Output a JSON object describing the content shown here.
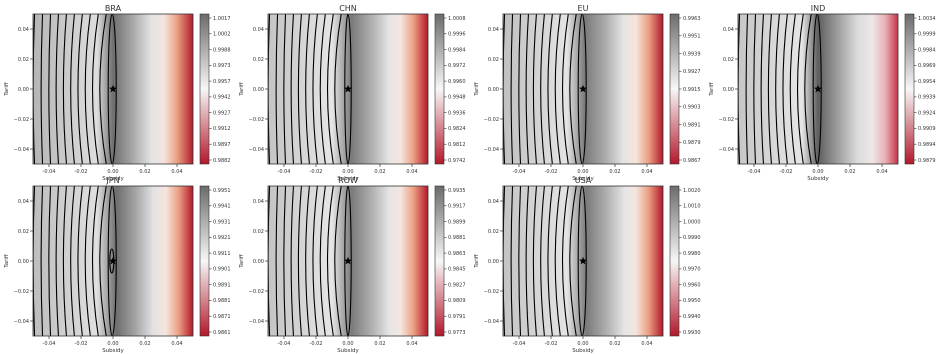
{
  "figure": {
    "xlabel": "Subsidy",
    "ylabel": "Tariff",
    "xticks": [
      -0.04,
      -0.02,
      0.0,
      0.02,
      0.04
    ],
    "yticks": [
      0.04,
      0.02,
      0.0,
      -0.02,
      -0.04
    ],
    "xtick_labels": [
      "-0.04",
      "-0.02",
      "0.00",
      "0.02",
      "0.04"
    ],
    "ytick_labels": [
      "0.04",
      "0.02",
      "0.00",
      "−0.02",
      "−0.04"
    ],
    "marker": "star",
    "marker_color": "#000000",
    "colormap_low": "#b2182b",
    "colormap_mid": "#f7f7f7",
    "colormap_high": "#6b6b6b",
    "contour_color": "#000000"
  },
  "chart_data": [
    {
      "type": "heatmap",
      "title": "BRA",
      "xlabel": "Subsidy",
      "ylabel": "Tariff",
      "xlim": [
        -0.05,
        0.05
      ],
      "ylim": [
        -0.05,
        0.05
      ],
      "optimum": {
        "x": 0.0,
        "y": 0.0
      },
      "colorbar_ticks": [
        "1.0017",
        "1.0002",
        "0.9988",
        "0.9973",
        "0.9957",
        "0.9942",
        "0.9927",
        "0.9912",
        "0.9897",
        "0.9882"
      ],
      "vertical_contours_x": [
        -0.049,
        -0.044,
        -0.039,
        -0.034,
        -0.029,
        -0.024,
        -0.019,
        -0.014,
        -0.009,
        -0.004
      ],
      "ellipse_contours": [
        {
          "left": -0.003,
          "right": 0.002,
          "half_height": 0.05
        }
      ],
      "gradient_stops": [
        [
          -0.05,
          "#b5b5b5"
        ],
        [
          -0.03,
          "#cacaca"
        ],
        [
          -0.01,
          "#dedede"
        ],
        [
          0.0,
          "#6f6f6f"
        ],
        [
          0.012,
          "#a6a6a6"
        ],
        [
          0.024,
          "#e4e4e4"
        ],
        [
          0.032,
          "#f4e4dc"
        ],
        [
          0.04,
          "#eaa184"
        ],
        [
          0.05,
          "#b01d2b"
        ]
      ]
    },
    {
      "type": "heatmap",
      "title": "CHN",
      "xlabel": "Subsidy",
      "ylabel": "Tariff",
      "xlim": [
        -0.05,
        0.05
      ],
      "ylim": [
        -0.05,
        0.05
      ],
      "optimum": {
        "x": 0.0,
        "y": 0.0
      },
      "colorbar_ticks": [
        "1.0008",
        "0.9996",
        "0.9984",
        "0.9972",
        "0.9960",
        "0.9948",
        "0.9936",
        "0.9824",
        "0.9812",
        "0.9742"
      ],
      "vertical_contours_x": [
        -0.049,
        -0.044,
        -0.039,
        -0.034,
        -0.029,
        -0.024,
        -0.019,
        -0.014,
        -0.009,
        -0.004
      ],
      "ellipse_contours": [
        {
          "left": -0.002,
          "right": 0.002,
          "half_height": 0.05
        }
      ],
      "gradient_stops": [
        [
          -0.05,
          "#c4c4c4"
        ],
        [
          -0.03,
          "#d4d4d4"
        ],
        [
          -0.01,
          "#e6e6e6"
        ],
        [
          0.002,
          "#7a7a7a"
        ],
        [
          0.015,
          "#b0b0b0"
        ],
        [
          0.026,
          "#e6e6e6"
        ],
        [
          0.033,
          "#f5e6de"
        ],
        [
          0.041,
          "#eb9f82"
        ],
        [
          0.05,
          "#b2182b"
        ]
      ]
    },
    {
      "type": "heatmap",
      "title": "EU",
      "xlabel": "Subsidy",
      "ylabel": "Tariff",
      "xlim": [
        -0.05,
        0.05
      ],
      "ylim": [
        -0.05,
        0.05
      ],
      "optimum": {
        "x": 0.0,
        "y": 0.0
      },
      "colorbar_ticks": [
        "0.9963",
        "0.9951",
        "0.9939",
        "0.9927",
        "0.9915",
        "0.9903",
        "0.9891",
        "0.9879",
        "0.9867"
      ],
      "vertical_contours_x": [
        -0.049,
        -0.044,
        -0.039,
        -0.034,
        -0.029,
        -0.024,
        -0.019,
        -0.014,
        -0.009,
        -0.004
      ],
      "ellipse_contours": [
        {
          "left": -0.003,
          "right": 0.002,
          "half_height": 0.05
        }
      ],
      "gradient_stops": [
        [
          -0.05,
          "#c0c0c0"
        ],
        [
          -0.03,
          "#d2d2d2"
        ],
        [
          -0.01,
          "#e4e4e4"
        ],
        [
          0.001,
          "#7a7a7a"
        ],
        [
          0.014,
          "#ababab"
        ],
        [
          0.025,
          "#e4e4e4"
        ],
        [
          0.033,
          "#f5e5dd"
        ],
        [
          0.041,
          "#eaa083"
        ],
        [
          0.05,
          "#b2182b"
        ]
      ]
    },
    {
      "type": "heatmap",
      "title": "IND",
      "xlabel": "Subsidy",
      "ylabel": "Tariff",
      "xlim": [
        -0.05,
        0.05
      ],
      "ylim": [
        -0.05,
        0.05
      ],
      "optimum": {
        "x": 0.0,
        "y": 0.0
      },
      "colorbar_ticks": [
        "1.0034",
        "0.9999",
        "0.9984",
        "0.9969",
        "0.9954",
        "0.9939",
        "0.9924",
        "0.9909",
        "0.9894",
        "0.9879"
      ],
      "vertical_contours_x": [
        -0.049,
        -0.044,
        -0.039,
        -0.034,
        -0.029,
        -0.024,
        -0.019,
        -0.014,
        -0.009,
        -0.004
      ],
      "ellipse_contours": [
        {
          "left": -0.003,
          "right": 0.002,
          "half_height": 0.05
        }
      ],
      "gradient_stops": [
        [
          -0.05,
          "#c6c6c6"
        ],
        [
          -0.03,
          "#d6d6d6"
        ],
        [
          -0.01,
          "#e6e6e6"
        ],
        [
          0.0,
          "#5e5e5e"
        ],
        [
          0.012,
          "#9c9c9c"
        ],
        [
          0.025,
          "#dcdcdc"
        ],
        [
          0.034,
          "#efe6e6"
        ],
        [
          0.042,
          "#e7b1b5"
        ],
        [
          0.05,
          "#c5344a"
        ]
      ]
    },
    {
      "type": "heatmap",
      "title": "JPN",
      "xlabel": "Subsidy",
      "ylabel": "Tariff",
      "xlim": [
        -0.05,
        0.05
      ],
      "ylim": [
        -0.05,
        0.05
      ],
      "optimum": {
        "x": 0.0,
        "y": 0.0
      },
      "colorbar_ticks": [
        "0.9951",
        "0.9941",
        "0.9931",
        "0.9921",
        "0.9911",
        "0.9901",
        "0.9891",
        "0.9881",
        "0.9871",
        "0.9861"
      ],
      "vertical_contours_x": [
        -0.049,
        -0.044,
        -0.039,
        -0.034,
        -0.029,
        -0.024,
        -0.019,
        -0.014,
        -0.009,
        -0.004
      ],
      "ellipse_contours": [
        {
          "left": -0.003,
          "right": 0.002,
          "half_height": 0.05
        },
        {
          "left": -0.002,
          "right": 0.0005,
          "half_height": 0.008
        }
      ],
      "gradient_stops": [
        [
          -0.05,
          "#bdbdbd"
        ],
        [
          -0.03,
          "#cfcfcf"
        ],
        [
          -0.01,
          "#e0e0e0"
        ],
        [
          0.002,
          "#6e6e6e"
        ],
        [
          0.014,
          "#a4a4a4"
        ],
        [
          0.025,
          "#e2e2e2"
        ],
        [
          0.033,
          "#f5e5dd"
        ],
        [
          0.041,
          "#eaa083"
        ],
        [
          0.05,
          "#b2182b"
        ]
      ]
    },
    {
      "type": "heatmap",
      "title": "ROW",
      "xlabel": "Subsidy",
      "ylabel": "Tariff",
      "xlim": [
        -0.05,
        0.05
      ],
      "ylim": [
        -0.05,
        0.05
      ],
      "optimum": {
        "x": 0.0,
        "y": 0.0
      },
      "colorbar_ticks": [
        "0.9935",
        "0.9917",
        "0.9899",
        "0.9881",
        "0.9863",
        "0.9845",
        "0.9827",
        "0.9809",
        "0.9791",
        "0.9773"
      ],
      "vertical_contours_x": [
        -0.049,
        -0.044,
        -0.039,
        -0.034,
        -0.029,
        -0.024,
        -0.019,
        -0.014,
        -0.009,
        -0.004
      ],
      "ellipse_contours": [
        {
          "left": -0.002,
          "right": 0.002,
          "half_height": 0.05
        }
      ],
      "gradient_stops": [
        [
          -0.05,
          "#c4c4c4"
        ],
        [
          -0.03,
          "#d4d4d4"
        ],
        [
          -0.01,
          "#e6e6e6"
        ],
        [
          0.002,
          "#7a7a7a"
        ],
        [
          0.015,
          "#b0b0b0"
        ],
        [
          0.026,
          "#e6e6e6"
        ],
        [
          0.033,
          "#f5e6de"
        ],
        [
          0.041,
          "#eb9f82"
        ],
        [
          0.05,
          "#b2182b"
        ]
      ]
    },
    {
      "type": "heatmap",
      "title": "USA",
      "xlabel": "Subsidy",
      "ylabel": "Tariff",
      "xlim": [
        -0.05,
        0.05
      ],
      "ylim": [
        -0.05,
        0.05
      ],
      "optimum": {
        "x": 0.0,
        "y": 0.0
      },
      "colorbar_ticks": [
        "1.0020",
        "1.0010",
        "1.0000",
        "0.9990",
        "0.9980",
        "0.9970",
        "0.9960",
        "0.9950",
        "0.9940",
        "0.9930"
      ],
      "vertical_contours_x": [
        -0.049,
        -0.044,
        -0.039,
        -0.034,
        -0.029,
        -0.024,
        -0.019,
        -0.014,
        -0.009,
        -0.004
      ],
      "ellipse_contours": [
        {
          "left": -0.003,
          "right": 0.002,
          "half_height": 0.05
        }
      ],
      "gradient_stops": [
        [
          -0.05,
          "#c4c4c4"
        ],
        [
          -0.03,
          "#d4d4d4"
        ],
        [
          -0.01,
          "#e4e4e4"
        ],
        [
          0.002,
          "#7a7a7a"
        ],
        [
          0.015,
          "#b0b0b0"
        ],
        [
          0.026,
          "#e6e6e6"
        ],
        [
          0.033,
          "#f5e6de"
        ],
        [
          0.041,
          "#eb9f82"
        ],
        [
          0.05,
          "#b2182b"
        ]
      ]
    }
  ]
}
